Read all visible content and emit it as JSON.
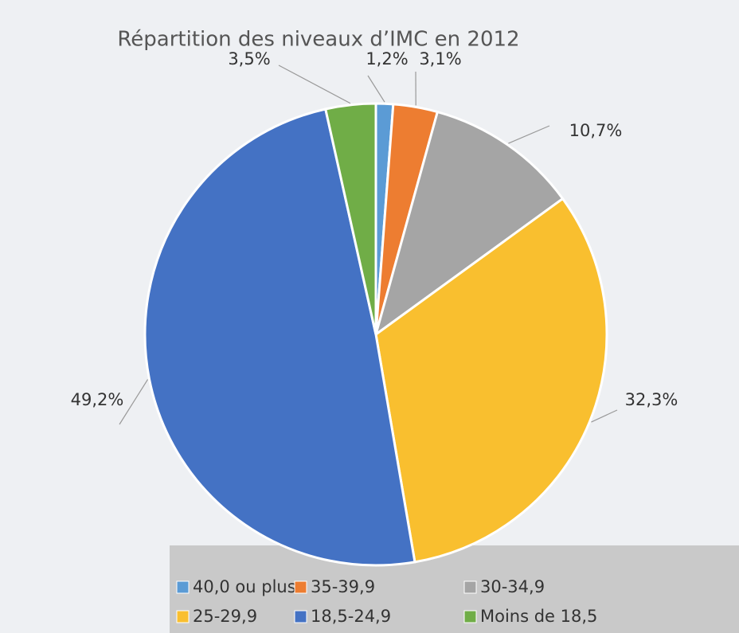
{
  "chart_data": {
    "type": "pie",
    "title": "Répartition des niveaux d’IMC en 2012",
    "categories": [
      "40,0 ou plus",
      "35-39,9",
      "30-34,9",
      "25-29,9",
      "18,5-24,9",
      "Moins de 18,5"
    ],
    "values": [
      1.2,
      3.1,
      10.7,
      32.3,
      49.2,
      3.5
    ],
    "value_labels": [
      "1,2%",
      "3,1%",
      "10,7%",
      "32,3%",
      "49,2%",
      "3,5%"
    ],
    "colors": [
      "#5b9bd5",
      "#ed7d31",
      "#a5a5a5",
      "#f9bf2f",
      "#4472c4",
      "#70ad47"
    ],
    "legend": "bottom"
  }
}
